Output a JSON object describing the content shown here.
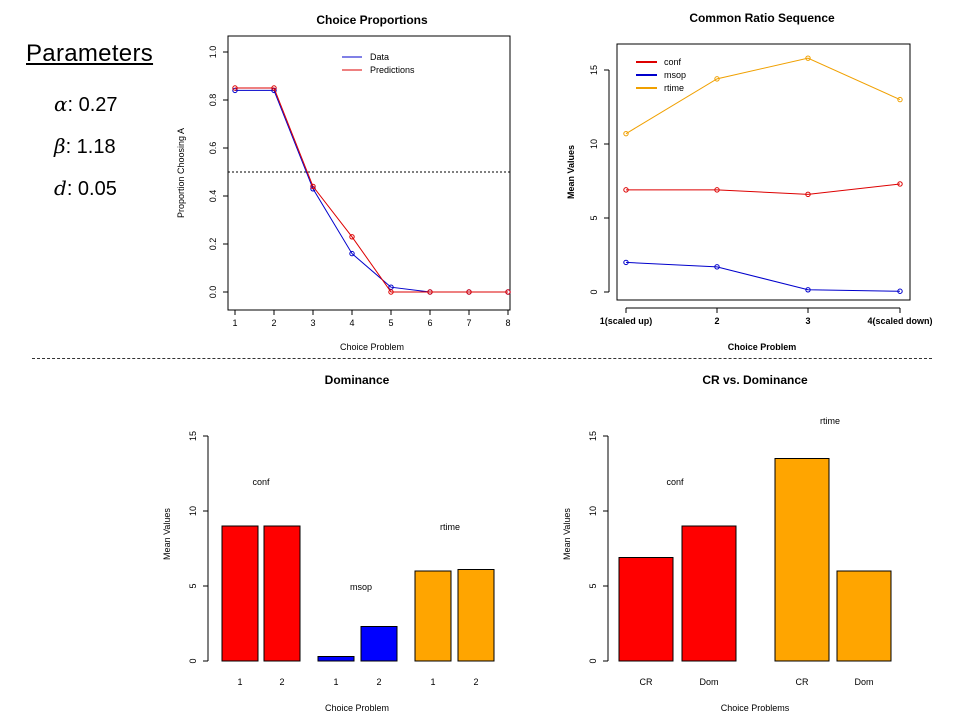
{
  "parameters": {
    "title": "Parameters",
    "items": [
      {
        "symbol": "α",
        "value": ": 0.27"
      },
      {
        "symbol": "β",
        "value": ": 1.18"
      },
      {
        "symbol": "d",
        "value": ": 0.05"
      }
    ]
  },
  "chart_data": [
    {
      "id": "choice-proportions",
      "type": "line",
      "title": "Choice Proportions",
      "xlabel": "Choice Problem",
      "ylabel": "Proportion Choosing A",
      "x": [
        1,
        2,
        3,
        4,
        5,
        6,
        7,
        8
      ],
      "xlim": [
        1,
        8
      ],
      "ylim": [
        0,
        1
      ],
      "yticks": [
        0.0,
        0.2,
        0.4,
        0.6,
        0.8,
        1.0
      ],
      "ytick_labels": [
        "0.0",
        "0.2",
        "0.4",
        "0.6",
        "0.8",
        "1.0"
      ],
      "reference_line": 0.5,
      "legend_position": "top-right",
      "series": [
        {
          "name": "Data",
          "color": "#0000cc",
          "values": [
            0.84,
            0.84,
            0.43,
            0.16,
            0.02,
            0.0,
            0.0,
            0.0
          ]
        },
        {
          "name": "Predictions",
          "color": "#dd0000",
          "values": [
            0.85,
            0.85,
            0.44,
            0.23,
            0.0,
            0.0,
            0.0,
            0.0
          ]
        }
      ]
    },
    {
      "id": "common-ratio",
      "type": "line",
      "title": "Common Ratio Sequence",
      "xlabel": "Choice Problem",
      "ylabel": "Mean Values",
      "categories": [
        "1(scaled up)",
        "2",
        "3",
        "4(scaled down)"
      ],
      "ylim": [
        0,
        17
      ],
      "yticks": [
        0,
        5,
        10,
        15
      ],
      "ytick_labels": [
        "0",
        "5",
        "10",
        "15"
      ],
      "legend_position": "top-left",
      "series": [
        {
          "name": "conf",
          "color": "#dd0000",
          "values": [
            6.9,
            6.9,
            6.6,
            7.3
          ]
        },
        {
          "name": "msop",
          "color": "#0000cc",
          "values": [
            2.0,
            1.7,
            0.15,
            0.05
          ]
        },
        {
          "name": "rtime",
          "color": "#f0a000",
          "values": [
            10.7,
            14.4,
            15.8,
            13.0
          ]
        }
      ]
    },
    {
      "id": "dominance",
      "type": "bar",
      "title": "Dominance",
      "xlabel": "Choice Problem",
      "ylabel": "Mean Values",
      "categories": [
        "1",
        "2",
        "1",
        "2",
        "1",
        "2"
      ],
      "values": [
        9.0,
        9.0,
        0.3,
        2.3,
        6.0,
        6.1
      ],
      "colors": [
        "#ff0000",
        "#ff0000",
        "#0000ff",
        "#0000ff",
        "#ffa500",
        "#ffa500"
      ],
      "ylim": [
        0,
        15
      ],
      "yticks": [
        0,
        5,
        10,
        15
      ],
      "ytick_labels": [
        "0",
        "5",
        "10",
        "15"
      ],
      "annotations": [
        "conf",
        "msop",
        "rtime"
      ]
    },
    {
      "id": "cr-vs-dominance",
      "type": "bar",
      "title": "CR vs. Dominance",
      "xlabel": "Choice Problems",
      "ylabel": "Mean Values",
      "categories": [
        "CR",
        "Dom",
        "CR",
        "Dom"
      ],
      "values": [
        6.9,
        9.0,
        13.5,
        6.0
      ],
      "colors": [
        "#ff0000",
        "#ff0000",
        "#ffa500",
        "#ffa500"
      ],
      "ylim": [
        0,
        15
      ],
      "yticks": [
        0,
        5,
        10,
        15
      ],
      "ytick_labels": [
        "0",
        "5",
        "10",
        "15"
      ],
      "annotations": [
        "conf",
        "rtime"
      ]
    }
  ]
}
